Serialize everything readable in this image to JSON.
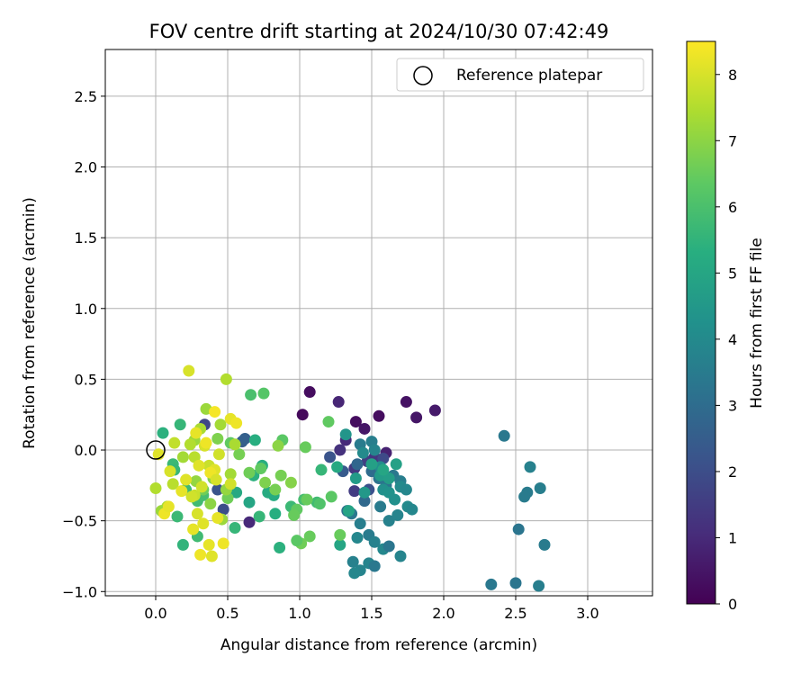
{
  "chart_data": {
    "type": "scatter",
    "title": "FOV centre drift starting at 2024/10/30 07:42:49",
    "xlabel": "Angular distance from reference (arcmin)",
    "ylabel": "Rotation from reference (arcmin)",
    "xlim": [
      -0.35,
      3.45
    ],
    "ylim": [
      -1.03,
      2.83
    ],
    "xticks": [
      "0.0",
      "0.5",
      "1.0",
      "1.5",
      "2.0",
      "2.5",
      "3.0"
    ],
    "yticks": [
      "−1.0",
      "−0.5",
      "0.0",
      "0.5",
      "1.0",
      "1.5",
      "2.0",
      "2.5"
    ],
    "grid": true,
    "legend": {
      "position": "top-right",
      "entries": [
        "Reference platepar"
      ]
    },
    "reference_point": {
      "x": 0.0,
      "y": 0.0
    },
    "colorbar": {
      "label": "Hours from first FF file",
      "range": [
        0,
        8.5
      ],
      "ticks": [
        "0",
        "1",
        "2",
        "3",
        "4",
        "5",
        "6",
        "7",
        "8"
      ],
      "colormap": "viridis"
    },
    "points": [
      [
        1.07,
        0.41,
        0.3
      ],
      [
        1.02,
        0.25,
        0.2
      ],
      [
        1.39,
        0.2,
        0.3
      ],
      [
        1.45,
        0.15,
        0.5
      ],
      [
        1.55,
        0.24,
        0.3
      ],
      [
        1.74,
        0.34,
        0.4
      ],
      [
        1.81,
        0.23,
        0.5
      ],
      [
        1.94,
        0.28,
        0.6
      ],
      [
        1.27,
        0.34,
        0.9
      ],
      [
        1.32,
        0.07,
        1.0
      ],
      [
        1.6,
        -0.02,
        0.8
      ],
      [
        1.28,
        0.0,
        1.2
      ],
      [
        0.65,
        -0.51,
        1.0
      ],
      [
        1.38,
        -0.13,
        1.4
      ],
      [
        1.47,
        -0.08,
        1.6
      ],
      [
        1.52,
        -0.05,
        1.3
      ],
      [
        1.58,
        -0.06,
        1.9
      ],
      [
        1.38,
        -0.29,
        1.5
      ],
      [
        1.48,
        -0.28,
        2.1
      ],
      [
        0.47,
        -0.42,
        2.0
      ],
      [
        0.43,
        -0.28,
        2.2
      ],
      [
        0.34,
        0.18,
        1.8
      ],
      [
        0.6,
        0.06,
        2.5
      ],
      [
        0.62,
        0.08,
        2.6
      ],
      [
        1.21,
        -0.05,
        2.2
      ],
      [
        1.3,
        -0.15,
        2.4
      ],
      [
        1.4,
        -0.1,
        2.8
      ],
      [
        1.5,
        -0.15,
        3.0
      ],
      [
        1.55,
        -0.2,
        3.2
      ],
      [
        1.6,
        -0.25,
        3.3
      ],
      [
        1.65,
        -0.18,
        3.4
      ],
      [
        1.7,
        -0.22,
        3.6
      ],
      [
        1.45,
        -0.36,
        2.9
      ],
      [
        1.56,
        -0.4,
        3.5
      ],
      [
        1.62,
        -0.5,
        3.7
      ],
      [
        1.68,
        -0.46,
        3.8
      ],
      [
        1.75,
        -0.4,
        4.0
      ],
      [
        1.78,
        -0.42,
        3.9
      ],
      [
        1.36,
        -0.45,
        3.4
      ],
      [
        1.33,
        -0.43,
        3.1
      ],
      [
        1.42,
        -0.52,
        3.6
      ],
      [
        1.48,
        -0.6,
        3.5
      ],
      [
        1.52,
        -0.65,
        3.7
      ],
      [
        1.58,
        -0.7,
        3.9
      ],
      [
        1.62,
        -0.68,
        3.3
      ],
      [
        1.7,
        -0.75,
        3.8
      ],
      [
        1.4,
        -0.62,
        3.9
      ],
      [
        1.37,
        -0.79,
        3.7
      ],
      [
        1.42,
        -0.85,
        3.8
      ],
      [
        1.38,
        -0.87,
        3.9
      ],
      [
        1.48,
        -0.8,
        3.8
      ],
      [
        1.52,
        -0.82,
        3.4
      ],
      [
        1.42,
        0.04,
        3.5
      ],
      [
        1.5,
        0.06,
        3.6
      ],
      [
        1.52,
        0.0,
        3.8
      ],
      [
        1.44,
        -0.02,
        4.0
      ],
      [
        1.56,
        -0.12,
        4.1
      ],
      [
        1.58,
        -0.28,
        4.2
      ],
      [
        1.62,
        -0.3,
        4.3
      ],
      [
        1.66,
        -0.35,
        4.2
      ],
      [
        1.7,
        -0.26,
        4.0
      ],
      [
        1.74,
        -0.28,
        3.9
      ],
      [
        2.42,
        0.1,
        3.4
      ],
      [
        2.6,
        -0.12,
        3.7
      ],
      [
        2.58,
        -0.3,
        3.5
      ],
      [
        2.67,
        -0.27,
        3.6
      ],
      [
        2.56,
        -0.33,
        3.5
      ],
      [
        2.52,
        -0.56,
        3.3
      ],
      [
        2.7,
        -0.67,
        3.5
      ],
      [
        2.33,
        -0.95,
        3.4
      ],
      [
        2.5,
        -0.94,
        3.3
      ],
      [
        2.66,
        -0.96,
        3.6
      ],
      [
        1.32,
        0.11,
        4.4
      ],
      [
        1.39,
        -0.2,
        4.6
      ],
      [
        1.45,
        -0.3,
        4.5
      ],
      [
        1.56,
        -0.18,
        4.6
      ],
      [
        1.62,
        -0.2,
        4.7
      ],
      [
        1.67,
        -0.1,
        4.8
      ],
      [
        1.5,
        -0.1,
        4.8
      ],
      [
        1.58,
        -0.14,
        5.0
      ],
      [
        1.26,
        -0.12,
        5.1
      ],
      [
        1.34,
        -0.43,
        4.9
      ],
      [
        1.28,
        -0.67,
        5.0
      ],
      [
        0.78,
        -0.3,
        5.2
      ],
      [
        0.83,
        -0.45,
        5.3
      ],
      [
        0.65,
        -0.37,
        5.0
      ],
      [
        0.69,
        0.07,
        5.3
      ],
      [
        0.56,
        -0.3,
        5.1
      ],
      [
        0.68,
        -0.18,
        5.4
      ],
      [
        0.74,
        -0.11,
        5.3
      ],
      [
        0.72,
        -0.47,
        5.6
      ],
      [
        0.86,
        -0.69,
        5.4
      ],
      [
        0.82,
        -0.32,
        5.2
      ],
      [
        0.17,
        0.18,
        5.6
      ],
      [
        0.05,
        0.12,
        5.4
      ],
      [
        0.12,
        -0.1,
        5.7
      ],
      [
        0.13,
        -0.14,
        5.6
      ],
      [
        0.19,
        -0.67,
        5.5
      ],
      [
        0.15,
        -0.47,
        5.7
      ],
      [
        1.12,
        -0.37,
        5.8
      ],
      [
        0.94,
        -0.4,
        5.7
      ],
      [
        1.03,
        -0.35,
        5.9
      ],
      [
        1.15,
        -0.14,
        5.6
      ],
      [
        0.29,
        -0.36,
        5.8
      ],
      [
        0.33,
        -0.32,
        5.9
      ],
      [
        0.21,
        -0.28,
        5.7
      ],
      [
        0.55,
        -0.55,
        5.6
      ],
      [
        0.29,
        -0.61,
        5.8
      ],
      [
        0.66,
        0.39,
        6.0
      ],
      [
        0.75,
        0.4,
        6.2
      ],
      [
        1.2,
        0.2,
        6.4
      ],
      [
        1.04,
        0.02,
        6.5
      ],
      [
        0.88,
        0.07,
        6.3
      ],
      [
        1.05,
        -0.35,
        6.5
      ],
      [
        0.98,
        -0.42,
        6.4
      ],
      [
        1.07,
        -0.61,
        6.5
      ],
      [
        1.01,
        -0.66,
        6.6
      ],
      [
        0.98,
        -0.64,
        6.3
      ],
      [
        1.14,
        -0.38,
        6.1
      ],
      [
        1.28,
        -0.6,
        6.5
      ],
      [
        1.22,
        -0.33,
        6.3
      ],
      [
        0.52,
        0.05,
        6.4
      ],
      [
        0.33,
        -0.28,
        6.6
      ],
      [
        0.83,
        -0.28,
        6.7
      ],
      [
        0.65,
        -0.16,
        6.6
      ],
      [
        0.76,
        -0.23,
        6.8
      ],
      [
        0.73,
        -0.13,
        6.4
      ],
      [
        0.87,
        -0.18,
        6.7
      ],
      [
        0.94,
        -0.23,
        6.9
      ],
      [
        0.96,
        -0.46,
        6.5
      ],
      [
        0.43,
        0.08,
        6.8
      ],
      [
        0.4,
        -0.2,
        6.9
      ],
      [
        0.5,
        -0.34,
        6.6
      ],
      [
        0.58,
        -0.03,
        6.7
      ],
      [
        0.85,
        0.03,
        7.0
      ],
      [
        0.27,
        0.07,
        7.2
      ],
      [
        0.19,
        -0.05,
        7.3
      ],
      [
        0.28,
        -0.22,
        7.1
      ],
      [
        0.38,
        -0.38,
        7.0
      ],
      [
        0.46,
        -0.49,
        7.2
      ],
      [
        0.49,
        -0.28,
        7.1
      ],
      [
        0.52,
        -0.17,
        7.3
      ],
      [
        0.55,
        0.04,
        7.4
      ],
      [
        0.45,
        0.18,
        7.3
      ],
      [
        0.35,
        0.29,
        7.2
      ],
      [
        0.31,
        0.15,
        7.4
      ],
      [
        0.24,
        0.04,
        7.5
      ],
      [
        0.0,
        -0.27,
        7.5
      ],
      [
        0.08,
        -0.4,
        7.4
      ],
      [
        0.04,
        -0.43,
        7.2
      ],
      [
        0.12,
        -0.24,
        7.6
      ],
      [
        0.13,
        0.05,
        7.7
      ],
      [
        0.27,
        -0.05,
        7.6
      ],
      [
        0.27,
        -0.32,
        7.8
      ],
      [
        0.32,
        -0.26,
        7.9
      ],
      [
        0.37,
        -0.11,
        7.8
      ],
      [
        0.44,
        -0.03,
        7.9
      ],
      [
        0.34,
        0.03,
        8.0
      ],
      [
        0.41,
        -0.14,
        8.1
      ],
      [
        0.52,
        -0.24,
        7.9
      ],
      [
        0.49,
        0.5,
        7.5
      ],
      [
        0.23,
        0.56,
        8.0
      ],
      [
        0.26,
        -0.56,
        8.2
      ],
      [
        0.31,
        -0.74,
        8.3
      ],
      [
        0.39,
        -0.75,
        8.1
      ],
      [
        0.37,
        -0.67,
        8.2
      ],
      [
        0.47,
        -0.66,
        8.3
      ],
      [
        0.33,
        -0.52,
        8.1
      ],
      [
        0.29,
        -0.45,
        8.0
      ],
      [
        0.43,
        -0.48,
        8.2
      ],
      [
        0.06,
        -0.45,
        8.3
      ],
      [
        0.09,
        -0.4,
        8.2
      ],
      [
        0.02,
        -0.03,
        8.1
      ],
      [
        0.1,
        -0.15,
        8.0
      ],
      [
        0.21,
        -0.21,
        8.1
      ],
      [
        0.28,
        0.12,
        8.2
      ],
      [
        0.35,
        0.05,
        8.3
      ],
      [
        0.41,
        0.27,
        8.4
      ],
      [
        0.52,
        0.22,
        8.2
      ],
      [
        0.56,
        0.19,
        8.3
      ],
      [
        0.3,
        -0.11,
        8.1
      ],
      [
        0.38,
        -0.16,
        8.3
      ],
      [
        0.25,
        -0.33,
        7.9
      ],
      [
        0.42,
        -0.21,
        8.0
      ],
      [
        0.18,
        -0.29,
        8.2
      ]
    ]
  }
}
